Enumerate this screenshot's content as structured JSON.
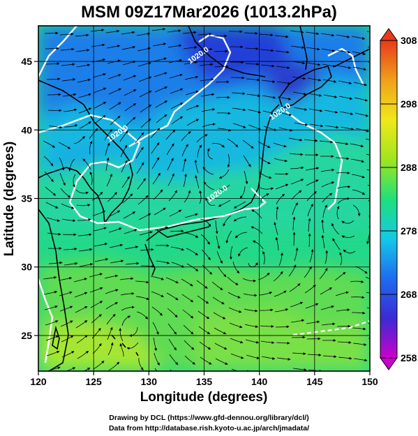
{
  "title": "MSM 09Z17Mar2026 (1013.2hPa)",
  "credits": {
    "line1": "Drawing by DCL (https://www.gfd-dennou.org/library/dcl/)",
    "line2": "Data from http://database.rish.kyoto-u.ac.jp/arch/jmadata/"
  },
  "chart_data": {
    "type": "heatmap",
    "title": "MSM 09Z17Mar2026 (1013.2hPa)",
    "xlabel": "Longitude (degrees)",
    "ylabel": "Latitude  (degrees)",
    "xlim": [
      120,
      150
    ],
    "ylim": [
      22.4,
      47.6
    ],
    "xticks": [
      120,
      125,
      130,
      135,
      140,
      145,
      150
    ],
    "yticks": [
      25,
      30,
      35,
      40,
      45
    ],
    "grid": true,
    "colorbar": {
      "range": [
        258,
        308
      ],
      "ticks": [
        258,
        268,
        278,
        288,
        298,
        308
      ],
      "colors": [
        "#cc00cc",
        "#3a2bd6",
        "#1e6cf0",
        "#14c8e8",
        "#1fe07a",
        "#9fe61f",
        "#f0e81a",
        "#f0a01a",
        "#e83a1a"
      ],
      "extends": "both"
    },
    "contours": [
      {
        "label": "1020.0",
        "lon": 134.6,
        "lat": 45.3
      },
      {
        "label": "1020.0",
        "lon": 127.3,
        "lat": 39.6
      },
      {
        "label": "1020.0",
        "lon": 142.0,
        "lat": 41.2
      },
      {
        "label": "1020.0",
        "lon": 136.3,
        "lat": 35.2
      }
    ],
    "overlay": "streamlines"
  }
}
